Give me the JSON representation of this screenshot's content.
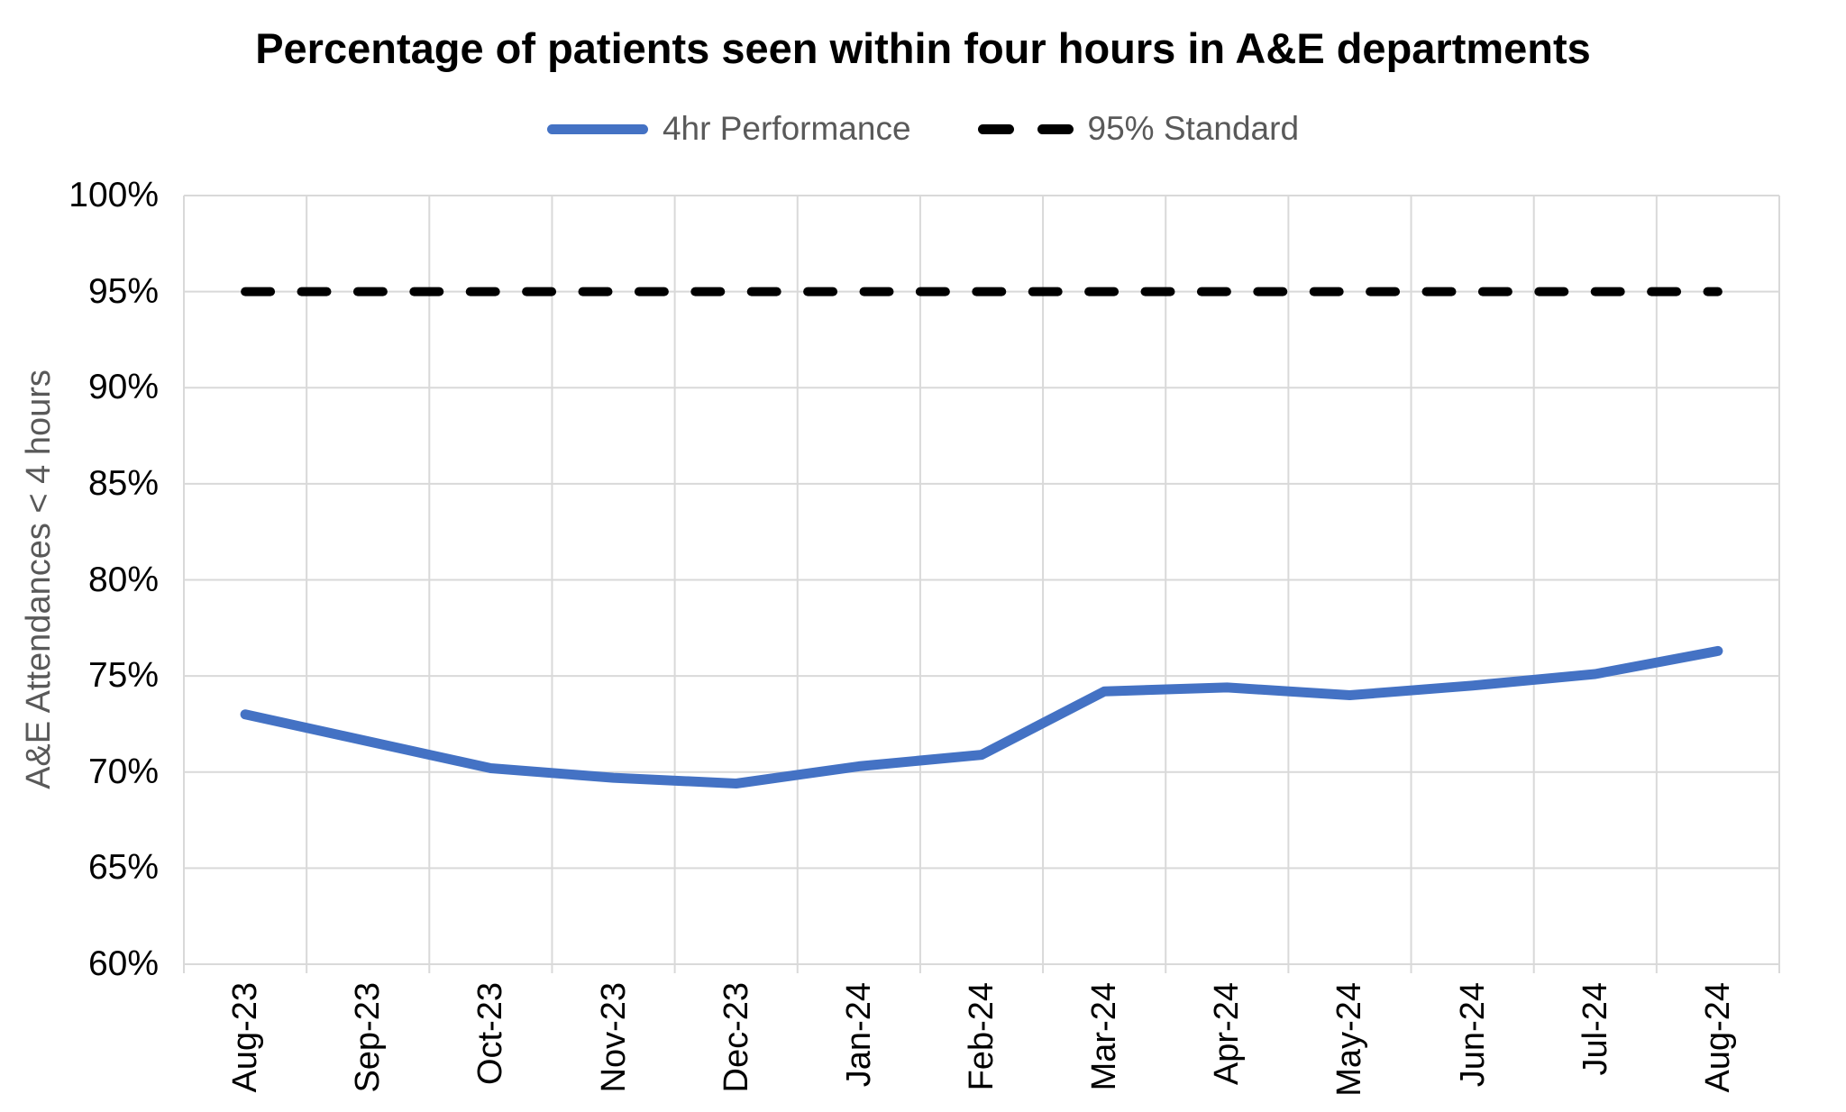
{
  "chart_data": {
    "type": "line",
    "title": "Percentage of patients seen within four hours in A&E departments",
    "ylabel": "A&E Attendances < 4 hours",
    "xlabel": "",
    "categories": [
      "Aug-23",
      "Sep-23",
      "Oct-23",
      "Nov-23",
      "Dec-23",
      "Jan-24",
      "Feb-24",
      "Mar-24",
      "Apr-24",
      "May-24",
      "Jun-24",
      "Jul-24",
      "Aug-24"
    ],
    "series": [
      {
        "name": "4hr Performance",
        "style": "solid",
        "color": "#4472C4",
        "values": [
          73.0,
          71.6,
          70.2,
          69.7,
          69.4,
          70.3,
          70.9,
          74.2,
          74.4,
          74.0,
          74.5,
          75.1,
          76.3
        ]
      },
      {
        "name": "95% Standard",
        "style": "dashed",
        "color": "#000000",
        "values": [
          95,
          95,
          95,
          95,
          95,
          95,
          95,
          95,
          95,
          95,
          95,
          95,
          95
        ]
      }
    ],
    "ylim": [
      60,
      100
    ],
    "ytick_step": 5,
    "ytick_labels_top_to_bottom": [
      "100%",
      "95%",
      "90%",
      "85%",
      "80%",
      "75%",
      "70%",
      "65%",
      "60%"
    ],
    "grid": true,
    "legend_position": "top",
    "colors": {
      "accent_blue": "#4472C4",
      "standard_black": "#000000",
      "grid_gray": "#D9D9D9",
      "muted_text_gray": "#595959",
      "tick_text": "#000000",
      "background": "#FFFFFF"
    }
  }
}
